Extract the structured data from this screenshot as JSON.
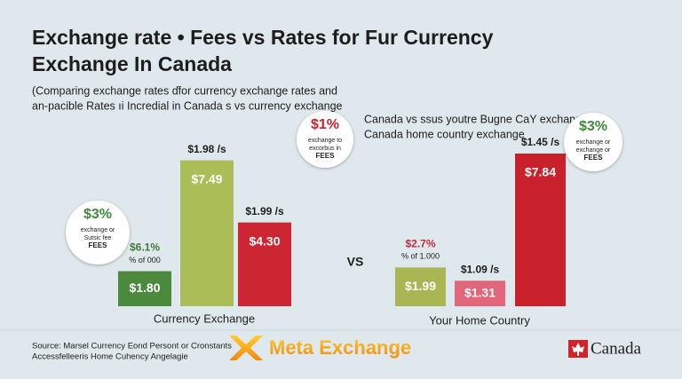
{
  "header": {
    "title_lines": [
      "Exchange rate • Fees vs Rates for Fur Currency",
      "Exchange In Canada"
    ],
    "subtitle_lines": [
      "(Comparing exchange rates ɗfor currency exchange rates  and",
      "an-pacible Rates ıi Incredial in Canada s vs currency exchange"
    ]
  },
  "chart_data": [
    {
      "type": "bar",
      "title": "Currency Exchange",
      "values": [
        1.8,
        7.49,
        4.3
      ],
      "value_labels": [
        "$1.80",
        "$7.49",
        "$4.30"
      ],
      "colors": [
        "#4b8a3c",
        "#abbd57",
        "#cb2631"
      ],
      "above_labels": [
        [
          "$6.1%",
          "% of 000"
        ],
        [
          "$1.98 /s"
        ],
        [
          "$1.99 /s"
        ]
      ]
    },
    {
      "type": "bar",
      "title": "Your Home Country",
      "subtitle_lines": [
        "Canada vs ssus youtre Bugne CaY exchange is",
        "Canada home country exchange"
      ],
      "values": [
        1.99,
        1.31,
        7.84
      ],
      "value_labels": [
        "$1.99",
        "$1.31",
        "$7.84"
      ],
      "colors": [
        "#aab653",
        "#e2667b",
        "#c8212b"
      ],
      "above_labels": [
        [
          "$2.7%",
          "% of 1.000"
        ],
        [
          "$1.09 /s"
        ],
        [
          "$1.45 /s"
        ]
      ]
    }
  ],
  "vs": "VS",
  "callouts": [
    {
      "lines": [
        "$3%",
        "exchange or",
        "Sutsic fee",
        "FEES"
      ]
    },
    {
      "lines": [
        "$1%",
        "exchange to",
        "excorbus in",
        "FEES"
      ]
    },
    {
      "lines": [
        "$3%",
        "exchange or",
        "exchange or",
        "FEES"
      ]
    }
  ],
  "footer": {
    "source_lines": [
      "Source: Marsel Currency Eond Persont or Cronstants",
      "Accessfelleeris Home Cuhency Angelagie"
    ],
    "brand": "Meta Exchange",
    "country": "Canada"
  }
}
